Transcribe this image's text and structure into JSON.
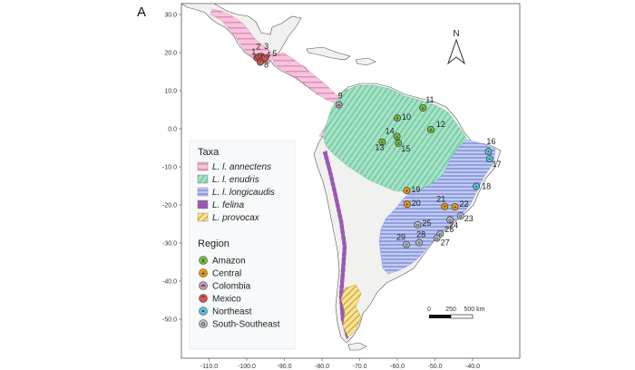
{
  "panel_label": "A",
  "colors": {
    "annectens": "#e58db8",
    "enudris": "#5fc79a",
    "longicaudis": "#8f9fe0",
    "felina": "#9b59b6",
    "provocax": "#e8c440",
    "land": "#f1f1ef",
    "ocean": "#ffffff",
    "amazon": "#7ac143",
    "central": "#f39c12",
    "colombia": "#c09ab8",
    "mexico": "#d9534f",
    "northeast": "#5bc0de",
    "southsoutheast": "#b9bdc8"
  },
  "axes": {
    "y_ticks": [
      "30.0",
      "20.0",
      "10.0",
      "0.0",
      "-10.0",
      "-20.0",
      "-30.0",
      "-40.0",
      "-50.0"
    ],
    "x_ticks": [
      "-110.0",
      "-100.0",
      "-90.0",
      "-80.0",
      "-70.0",
      "-60.0",
      "-50.0",
      "-40.0"
    ]
  },
  "legend": {
    "taxa_title": "Taxa",
    "taxa": [
      {
        "label": "L. l. annectens",
        "key": "annectens"
      },
      {
        "label": "L. l. enudris",
        "key": "enudris"
      },
      {
        "label": "L. l. longicaudis",
        "key": "longicaudis"
      },
      {
        "label": "L. felina",
        "key": "felina"
      },
      {
        "label": "L. provocax",
        "key": "provocax"
      }
    ],
    "region_title": "Region",
    "regions": [
      {
        "label": "Amazon",
        "key": "amazon",
        "symbol": "x"
      },
      {
        "label": "Central",
        "key": "central",
        "symbol": "+"
      },
      {
        "label": "Colombia",
        "key": "colombia",
        "symbol": "="
      },
      {
        "label": "Mexico",
        "key": "mexico",
        "symbol": "^"
      },
      {
        "label": "Northeast",
        "key": "northeast",
        "symbol": "•"
      },
      {
        "label": "South-Southeast",
        "key": "southsoutheast",
        "symbol": "o"
      }
    ]
  },
  "compass": {
    "label": "N"
  },
  "scale_bar": {
    "labels": [
      "0",
      "250",
      "500 km"
    ]
  },
  "sites": [
    {
      "id": "1",
      "region": "mexico",
      "lon": -97.3,
      "lat": 18.6
    },
    {
      "id": "2",
      "region": "mexico",
      "lon": -96.8,
      "lat": 18.9
    },
    {
      "id": "3",
      "region": "mexico",
      "lon": -96.1,
      "lat": 19.0
    },
    {
      "id": "4",
      "region": "mexico",
      "lon": -95.6,
      "lat": 18.4
    },
    {
      "id": "5",
      "region": "mexico",
      "lon": -95.1,
      "lat": 18.6
    },
    {
      "id": "8",
      "region": "mexico",
      "lon": -96.4,
      "lat": 17.5
    },
    {
      "id": "9",
      "region": "colombia",
      "lon": -75.5,
      "lat": 6.3
    },
    {
      "id": "10",
      "region": "amazon",
      "lon": -60.0,
      "lat": 2.8
    },
    {
      "id": "11",
      "region": "amazon",
      "lon": -53.2,
      "lat": 5.5
    },
    {
      "id": "12",
      "region": "amazon",
      "lon": -51.1,
      "lat": -0.2
    },
    {
      "id": "13",
      "region": "amazon",
      "lon": -64.0,
      "lat": -3.5
    },
    {
      "id": "14",
      "region": "amazon",
      "lon": -60.1,
      "lat": -2.0
    },
    {
      "id": "15",
      "region": "amazon",
      "lon": -59.7,
      "lat": -3.8
    },
    {
      "id": "16",
      "region": "northeast",
      "lon": -35.8,
      "lat": -6.0
    },
    {
      "id": "17",
      "region": "northeast",
      "lon": -35.5,
      "lat": -7.9
    },
    {
      "id": "18",
      "region": "northeast",
      "lon": -39.0,
      "lat": -15.1
    },
    {
      "id": "19",
      "region": "central",
      "lon": -57.5,
      "lat": -16.2
    },
    {
      "id": "20",
      "region": "central",
      "lon": -57.4,
      "lat": -19.8
    },
    {
      "id": "21",
      "region": "central",
      "lon": -47.4,
      "lat": -20.4
    },
    {
      "id": "22",
      "region": "central",
      "lon": -44.7,
      "lat": -20.5
    },
    {
      "id": "23",
      "region": "southsoutheast",
      "lon": -43.2,
      "lat": -22.9
    },
    {
      "id": "24",
      "region": "southsoutheast",
      "lon": -46.0,
      "lat": -23.9
    },
    {
      "id": "25",
      "region": "southsoutheast",
      "lon": -54.6,
      "lat": -25.2
    },
    {
      "id": "26",
      "region": "southsoutheast",
      "lon": -48.6,
      "lat": -27.6
    },
    {
      "id": "27",
      "region": "southsoutheast",
      "lon": -49.5,
      "lat": -28.7
    },
    {
      "id": "28",
      "region": "southsoutheast",
      "lon": -54.2,
      "lat": -29.9
    },
    {
      "id": "29",
      "region": "southsoutheast",
      "lon": -57.6,
      "lat": -30.4
    }
  ]
}
